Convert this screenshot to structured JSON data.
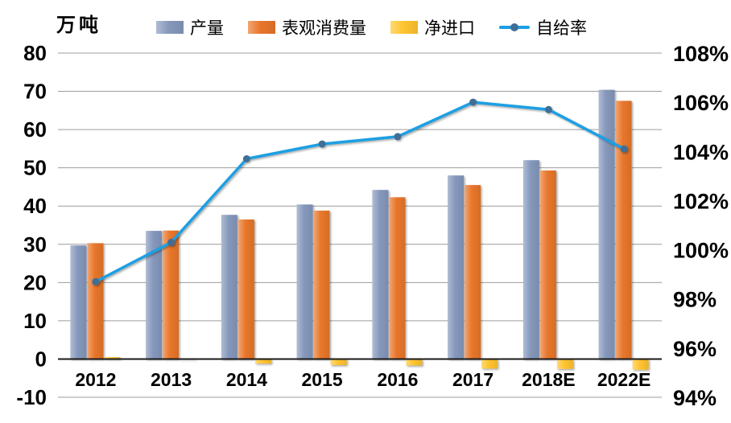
{
  "legend": [
    {
      "key": "production",
      "label": "产量",
      "type": "bar",
      "color": "#8598BC"
    },
    {
      "key": "apparent-consumption",
      "label": "表观消费量",
      "type": "bar",
      "color": "#E8762A"
    },
    {
      "key": "net-imports",
      "label": "净进口",
      "type": "bar",
      "color": "#FFC42F"
    },
    {
      "key": "self-sufficiency",
      "label": "自给率",
      "type": "line",
      "color": "#1A9FE3",
      "marker_color": "#3F6E96"
    }
  ],
  "chart_data": {
    "type": "bar-line-combo",
    "categories": [
      "2012",
      "2013",
      "2014",
      "2015",
      "2016",
      "2017",
      "2018E",
      "2022E"
    ],
    "series": [
      {
        "key": "production",
        "name": "产量",
        "type": "bar",
        "axis": "left",
        "color": "#8598BC",
        "values": [
          29.7,
          33.5,
          37.7,
          40.4,
          44.2,
          48,
          52,
          70.4
        ]
      },
      {
        "key": "apparent-consumption",
        "name": "表观消费量",
        "type": "bar",
        "axis": "left",
        "color": "#E8762A",
        "values": [
          30.3,
          33.6,
          36.5,
          38.8,
          42.3,
          45.5,
          49.3,
          67.5
        ]
      },
      {
        "key": "net-imports",
        "name": "净进口",
        "type": "bar",
        "axis": "left",
        "color": "#FFC42F",
        "values": [
          0.5,
          0.1,
          -1.2,
          -1.6,
          -1.7,
          -2.5,
          -2.6,
          -2.8
        ]
      },
      {
        "key": "self-sufficiency",
        "name": "自给率",
        "type": "line",
        "axis": "right",
        "color": "#1A9FE3",
        "marker_color": "#3F6E96",
        "values": [
          98.7,
          100.3,
          103.7,
          104.3,
          104.6,
          106.0,
          105.7,
          104.1
        ]
      }
    ],
    "left_axis": {
      "title": "万吨",
      "min": -10,
      "max": 80,
      "ticks": [
        80,
        70,
        60,
        50,
        40,
        30,
        20,
        10,
        0,
        -10
      ]
    },
    "right_axis": {
      "min": 94,
      "max": 108,
      "ticks": [
        "108%",
        "106%",
        "104%",
        "102%",
        "100%",
        "98%",
        "96%",
        "94%"
      ]
    },
    "grid": true,
    "legend_position": "top"
  },
  "colors": {
    "grid": "#9C9C9C",
    "zero_line": "#1A1A1A",
    "text": "#000000",
    "background": "#FFFFFF"
  }
}
